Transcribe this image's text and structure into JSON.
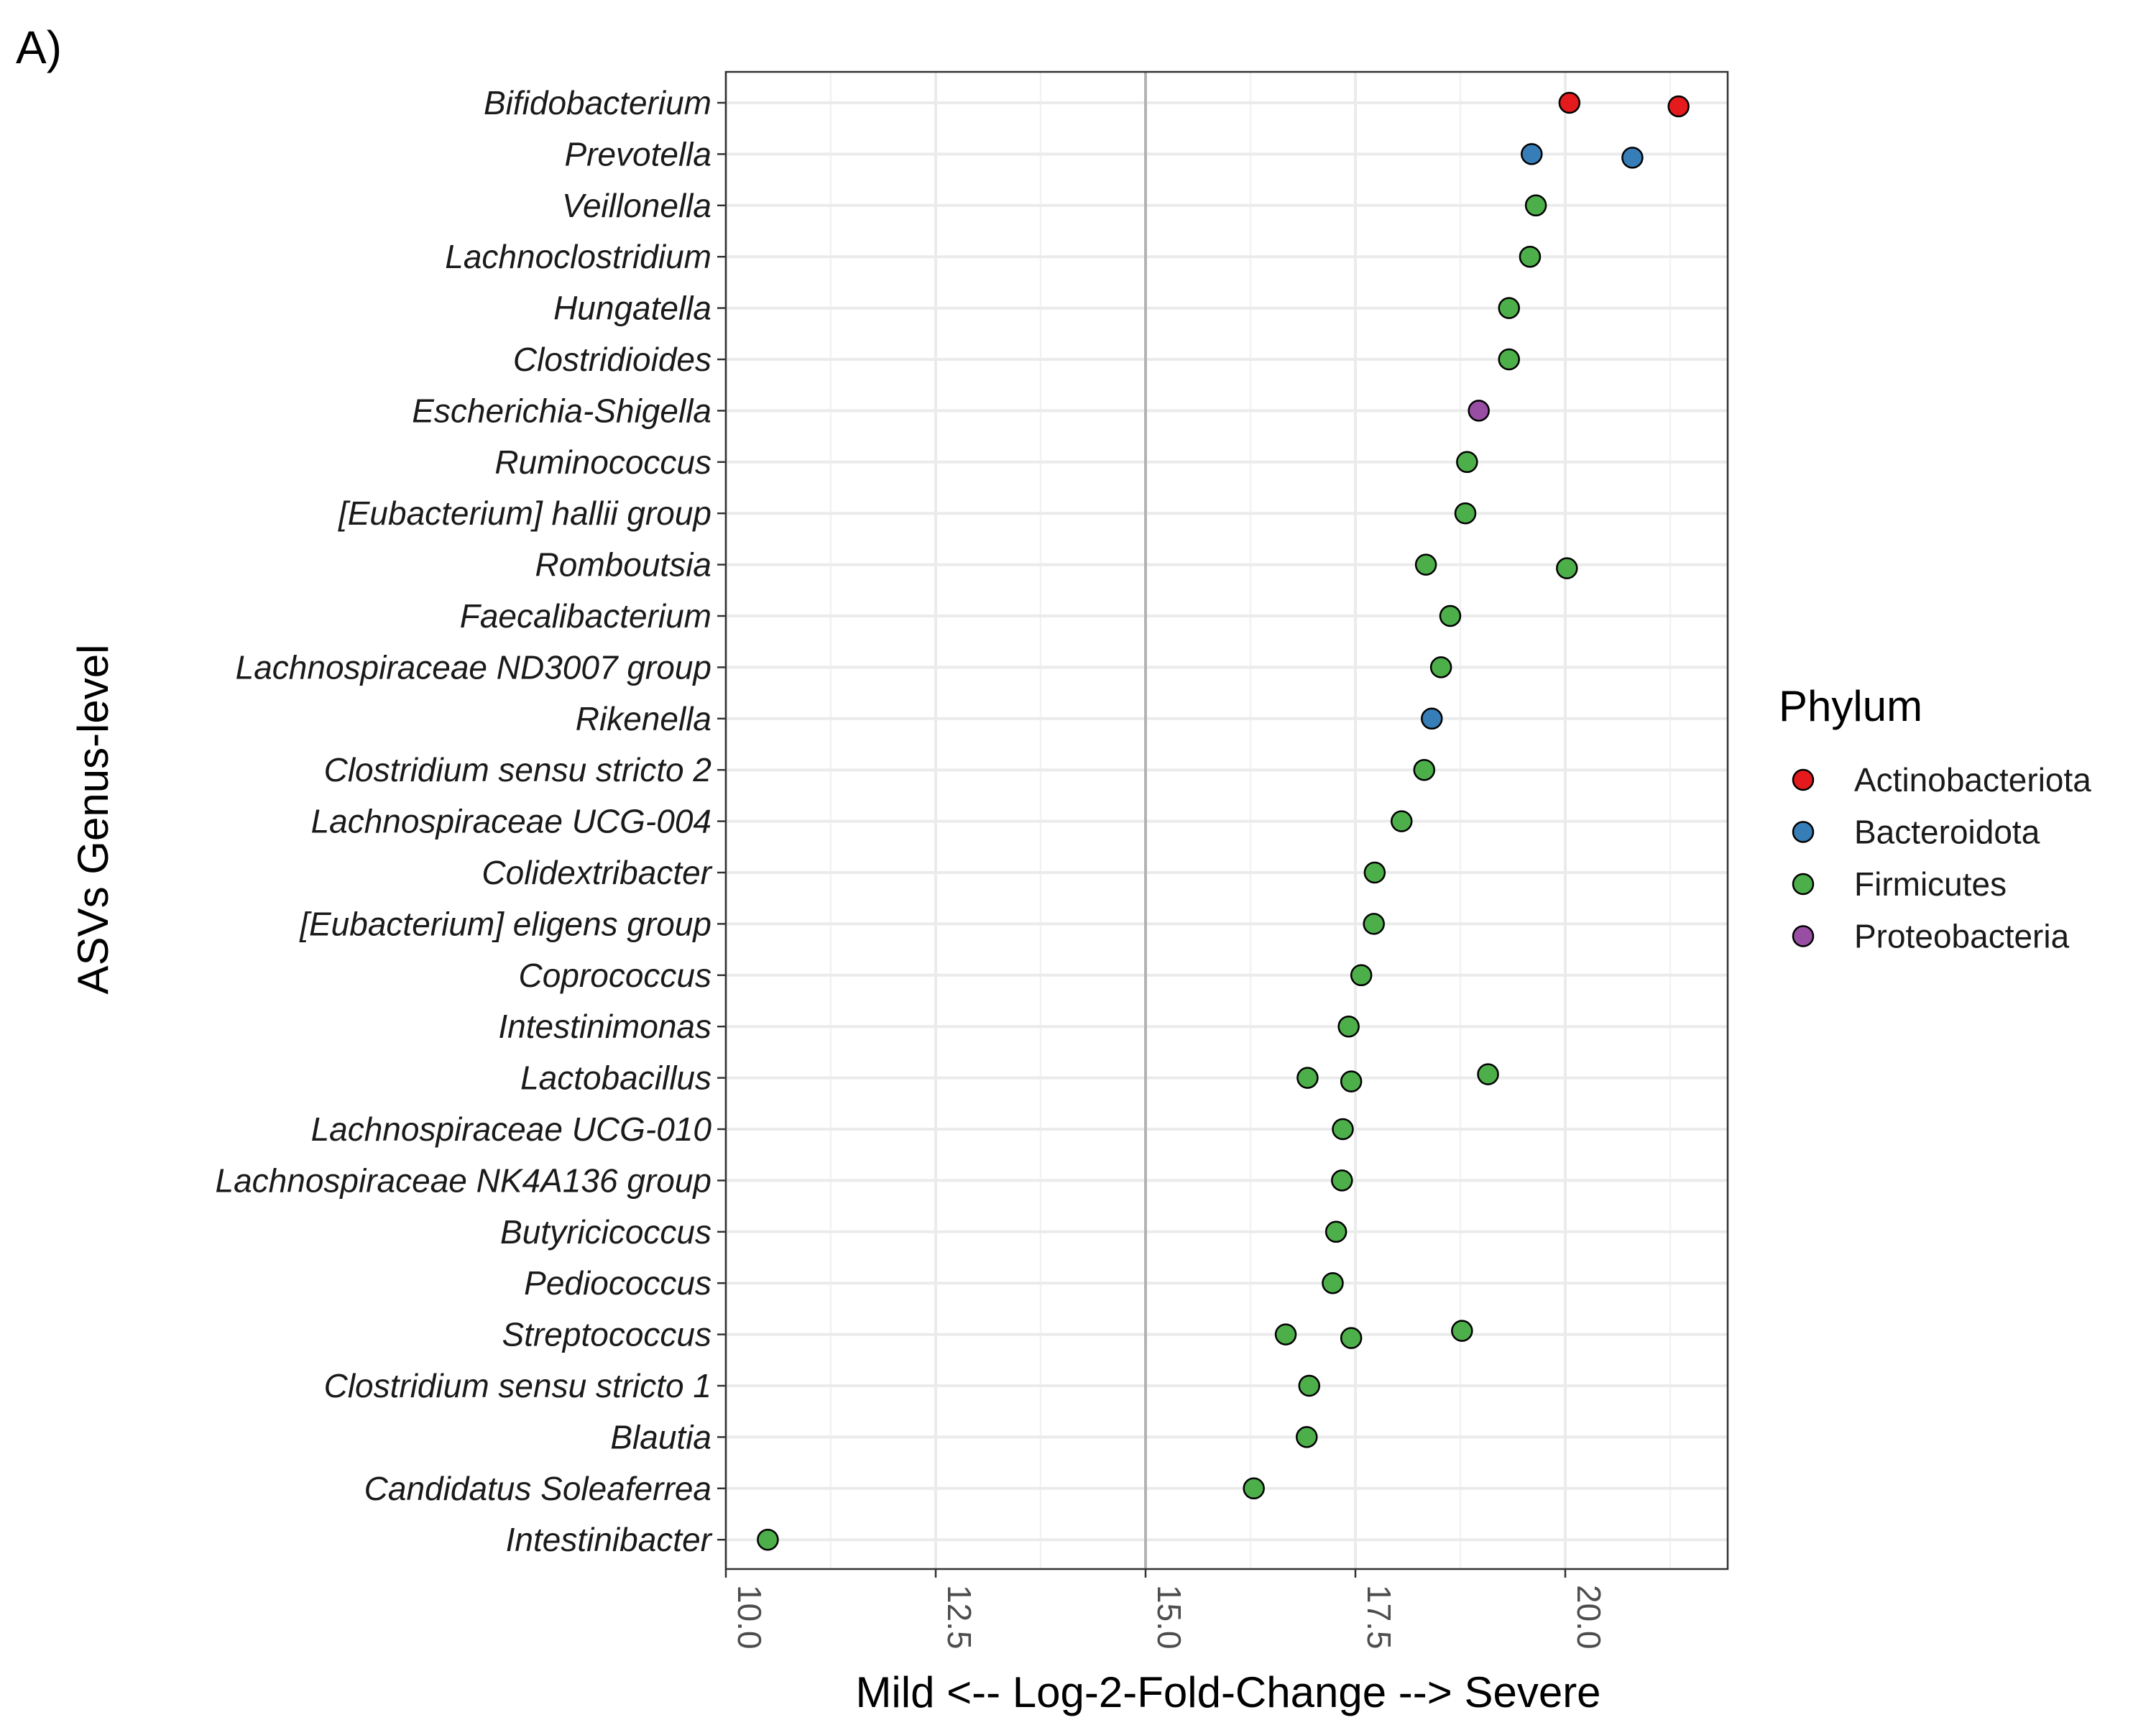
{
  "panel_label": "A)",
  "chart_data": {
    "type": "scatter",
    "xlabel": "Mild <-- Log-2-Fold-Change --> Severe",
    "ylabel": "ASVs Genus-level",
    "xlim": [
      10.0,
      21.9
    ],
    "x_ticks": [
      "10.0",
      "12.5",
      "15.0",
      "17.5",
      "20.0"
    ],
    "x_tick_values": [
      10.0,
      12.5,
      15.0,
      17.5,
      20.0
    ],
    "x_minor_tick_values": [
      11.25,
      13.75,
      16.25,
      18.75,
      21.25
    ],
    "reference_line_x": 15.0,
    "grid": true,
    "legend_position": "right",
    "legend_title": "Phylum",
    "phyla": [
      {
        "name": "Actinobacteriota",
        "color": "#E41A1C"
      },
      {
        "name": "Bacteroidota",
        "color": "#377EB8"
      },
      {
        "name": "Firmicutes",
        "color": "#4DAF4A"
      },
      {
        "name": "Proteobacteria",
        "color": "#984EA3"
      }
    ],
    "categories": [
      "Bifidobacterium",
      "Prevotella",
      "Veillonella",
      "Lachnoclostridium",
      "Hungatella",
      "Clostridioides",
      "Escherichia-Shigella",
      "Ruminococcus",
      "[Eubacterium] hallii group",
      "Romboutsia",
      "Faecalibacterium",
      "Lachnospiraceae ND3007 group",
      "Rikenella",
      "Clostridium sensu stricto 2",
      "Lachnospiraceae UCG-004",
      "Colidextribacter",
      "[Eubacterium] eligens group",
      "Coprococcus",
      "Intestinimonas",
      "Lactobacillus",
      "Lachnospiraceae UCG-010",
      "Lachnospiraceae NK4A136 group",
      "Butyricicoccus",
      "Pediococcus",
      "Streptococcus",
      "Clostridium sensu stricto 1",
      "Blautia",
      "Candidatus Soleaferrea",
      "Intestinibacter"
    ],
    "points": [
      {
        "genus": "Bifidobacterium",
        "x": 20.05,
        "phylum": "Actinobacteriota"
      },
      {
        "genus": "Bifidobacterium",
        "x": 21.35,
        "phylum": "Actinobacteriota"
      },
      {
        "genus": "Prevotella",
        "x": 19.6,
        "phylum": "Bacteroidota"
      },
      {
        "genus": "Prevotella",
        "x": 20.8,
        "phylum": "Bacteroidota"
      },
      {
        "genus": "Veillonella",
        "x": 19.65,
        "phylum": "Firmicutes"
      },
      {
        "genus": "Lachnoclostridium",
        "x": 19.58,
        "phylum": "Firmicutes"
      },
      {
        "genus": "Hungatella",
        "x": 19.33,
        "phylum": "Firmicutes"
      },
      {
        "genus": "Clostridioides",
        "x": 19.33,
        "phylum": "Firmicutes"
      },
      {
        "genus": "Escherichia-Shigella",
        "x": 18.97,
        "phylum": "Proteobacteria"
      },
      {
        "genus": "Ruminococcus",
        "x": 18.83,
        "phylum": "Firmicutes"
      },
      {
        "genus": "[Eubacterium] hallii group",
        "x": 18.81,
        "phylum": "Firmicutes"
      },
      {
        "genus": "Romboutsia",
        "x": 18.34,
        "phylum": "Firmicutes"
      },
      {
        "genus": "Romboutsia",
        "x": 20.02,
        "phylum": "Firmicutes"
      },
      {
        "genus": "Faecalibacterium",
        "x": 18.63,
        "phylum": "Firmicutes"
      },
      {
        "genus": "Lachnospiraceae ND3007 group",
        "x": 18.52,
        "phylum": "Firmicutes"
      },
      {
        "genus": "Rikenella",
        "x": 18.41,
        "phylum": "Bacteroidota"
      },
      {
        "genus": "Clostridium sensu stricto 2",
        "x": 18.32,
        "phylum": "Firmicutes"
      },
      {
        "genus": "Lachnospiraceae UCG-004",
        "x": 18.05,
        "phylum": "Firmicutes"
      },
      {
        "genus": "Colidextribacter",
        "x": 17.73,
        "phylum": "Firmicutes"
      },
      {
        "genus": "[Eubacterium] eligens group",
        "x": 17.72,
        "phylum": "Firmicutes"
      },
      {
        "genus": "Coprococcus",
        "x": 17.57,
        "phylum": "Firmicutes"
      },
      {
        "genus": "Intestinimonas",
        "x": 17.42,
        "phylum": "Firmicutes"
      },
      {
        "genus": "Lactobacillus",
        "x": 16.93,
        "phylum": "Firmicutes"
      },
      {
        "genus": "Lactobacillus",
        "x": 17.45,
        "phylum": "Firmicutes"
      },
      {
        "genus": "Lactobacillus",
        "x": 19.08,
        "phylum": "Firmicutes"
      },
      {
        "genus": "Lachnospiraceae UCG-010",
        "x": 17.35,
        "phylum": "Firmicutes"
      },
      {
        "genus": "Lachnospiraceae NK4A136 group",
        "x": 17.34,
        "phylum": "Firmicutes"
      },
      {
        "genus": "Butyricicoccus",
        "x": 17.27,
        "phylum": "Firmicutes"
      },
      {
        "genus": "Pediococcus",
        "x": 17.23,
        "phylum": "Firmicutes"
      },
      {
        "genus": "Streptococcus",
        "x": 16.67,
        "phylum": "Firmicutes"
      },
      {
        "genus": "Streptococcus",
        "x": 17.45,
        "phylum": "Firmicutes"
      },
      {
        "genus": "Streptococcus",
        "x": 18.77,
        "phylum": "Firmicutes"
      },
      {
        "genus": "Clostridium sensu stricto 1",
        "x": 16.95,
        "phylum": "Firmicutes"
      },
      {
        "genus": "Blautia",
        "x": 16.92,
        "phylum": "Firmicutes"
      },
      {
        "genus": "Candidatus Soleaferrea",
        "x": 16.29,
        "phylum": "Firmicutes"
      },
      {
        "genus": "Intestinibacter",
        "x": 10.5,
        "phylum": "Firmicutes"
      }
    ]
  }
}
